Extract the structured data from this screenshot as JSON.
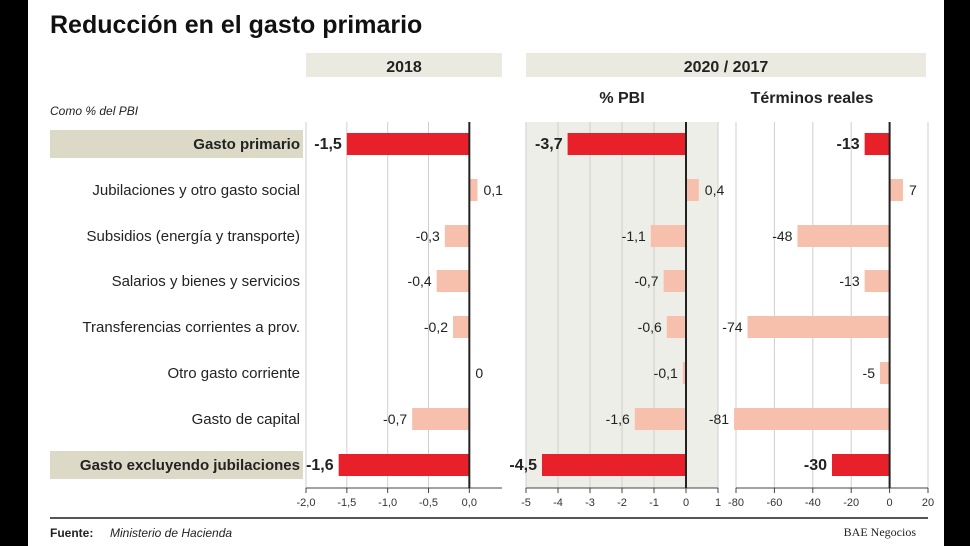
{
  "title": "Reducción en el gasto primario",
  "subtitle": "Como % del PBI",
  "headers": {
    "panel1": "2018",
    "group2": "2020 / 2017",
    "panel2": "% PBI",
    "panel3": "Términos reales"
  },
  "footer": {
    "source_label": "Fuente:",
    "source_value": "Ministerio de Hacienda",
    "credit": "BAE Negocios"
  },
  "colors": {
    "highlight_bar": "#e8202a",
    "normal_bar": "#f6c0ad",
    "row_highlight_bg": "#dcd9c6",
    "header_bg": "#ebeae0",
    "panel_bg": "#eeeee8"
  },
  "chart_data": {
    "type": "bar",
    "orientation": "horizontal",
    "categories": [
      "Gasto primario",
      "Jubilaciones y otro gasto social",
      "Subsidios (energía y transporte)",
      "Salarios y bienes y servicios",
      "Transferencias corrientes a prov.",
      "Otro gasto corriente",
      "Gasto de capital",
      "Gasto excluyendo jubilaciones"
    ],
    "highlighted": [
      true,
      false,
      false,
      false,
      false,
      false,
      false,
      true
    ],
    "panels": [
      {
        "name": "2018",
        "values": [
          -1.5,
          0.1,
          -0.3,
          -0.4,
          -0.2,
          0,
          -0.7,
          -1.6
        ],
        "labels": [
          "-1,5",
          "0,1",
          "-0,3",
          "-0,4",
          "-0,2",
          "0",
          "-0,7",
          "-1,6"
        ],
        "xlim": [
          -2.0,
          0.4
        ],
        "ticks": [
          -2.0,
          -1.5,
          -1.0,
          -0.5,
          0.0
        ],
        "tick_labels": [
          "-2,0",
          "-1,5",
          "-1,0",
          "-0,5",
          "0,0"
        ]
      },
      {
        "name": "% PBI",
        "values": [
          -3.7,
          0.4,
          -1.1,
          -0.7,
          -0.6,
          -0.1,
          -1.6,
          -4.5
        ],
        "labels": [
          "-3,7",
          "0,4",
          "-1,1",
          "-0,7",
          "-0,6",
          "-0,1",
          "-1,6",
          "-4,5"
        ],
        "xlim": [
          -5,
          1
        ],
        "ticks": [
          -5,
          -4,
          -3,
          -2,
          -1,
          0,
          1
        ],
        "tick_labels": [
          "-5",
          "-4",
          "-3",
          "-2",
          "-1",
          "0",
          "1"
        ]
      },
      {
        "name": "Términos reales",
        "values": [
          -13,
          7,
          -48,
          -13,
          -74,
          -5,
          -81,
          -30
        ],
        "labels": [
          "-13",
          "7",
          "-48",
          "-13",
          "-74",
          "-5",
          "-81",
          "-30"
        ],
        "xlim": [
          -80,
          20
        ],
        "ticks": [
          -80,
          -60,
          -40,
          -20,
          0,
          20
        ],
        "tick_labels": [
          "-80",
          "-60",
          "-40",
          "-20",
          "0",
          "20"
        ]
      }
    ]
  }
}
